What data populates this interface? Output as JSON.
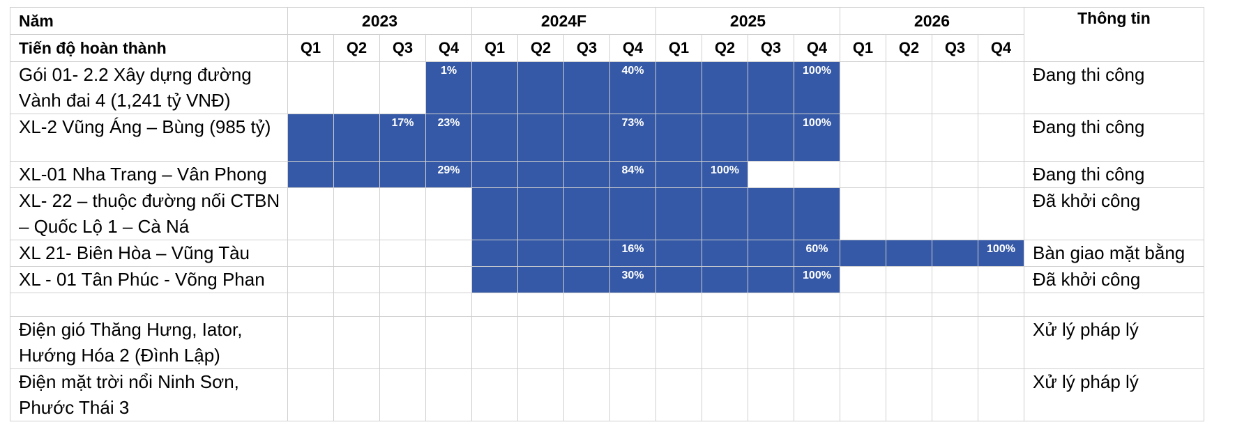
{
  "chart_data": {
    "type": "table",
    "header_year_label": "Năm",
    "header_progress_label": "Tiến độ hoàn thành",
    "info_header": "Thông tin",
    "years": [
      "2023",
      "2024F",
      "2025",
      "2026"
    ],
    "quarters": [
      "Q1",
      "Q2",
      "Q3",
      "Q4"
    ],
    "bar_color": "#3559a6",
    "rows": [
      {
        "name": "Gói 01- 2.2 Xây dựng đường Vành đai 4 (1,241 tỷ VNĐ)",
        "status": "Đang thi công",
        "filled": [
          0,
          0,
          0,
          1,
          1,
          1,
          1,
          1,
          1,
          1,
          1,
          1,
          0,
          0,
          0,
          0
        ],
        "labels": [
          "",
          "",
          "",
          "1%",
          "",
          "",
          "",
          "40%",
          "",
          "",
          "",
          "100%",
          "",
          "",
          "",
          ""
        ]
      },
      {
        "name": "XL-2 Vũng Áng – Bùng (985 tỷ)",
        "status": "Đang thi công",
        "filled": [
          1,
          1,
          1,
          1,
          1,
          1,
          1,
          1,
          1,
          1,
          1,
          1,
          0,
          0,
          0,
          0
        ],
        "labels": [
          "",
          "",
          "17%",
          "23%",
          "",
          "",
          "",
          "73%",
          "",
          "",
          "",
          "100%",
          "",
          "",
          "",
          ""
        ]
      },
      {
        "name": "XL-01 Nha Trang – Vân Phong",
        "status": "Đang thi công",
        "filled": [
          1,
          1,
          1,
          1,
          1,
          1,
          1,
          1,
          1,
          1,
          0,
          0,
          0,
          0,
          0,
          0
        ],
        "labels": [
          "",
          "",
          "",
          "29%",
          "",
          "",
          "",
          "84%",
          "",
          "100%",
          "",
          "",
          "",
          "",
          "",
          ""
        ]
      },
      {
        "name": "XL- 22 – thuộc đường nối CTBN – Quốc Lộ 1 – Cà Ná",
        "status": "Đã khởi công",
        "filled": [
          0,
          0,
          0,
          0,
          1,
          1,
          1,
          1,
          1,
          1,
          1,
          1,
          0,
          0,
          0,
          0
        ],
        "labels": [
          "",
          "",
          "",
          "",
          "",
          "",
          "",
          "",
          "",
          "",
          "",
          "",
          "",
          "",
          "",
          ""
        ]
      },
      {
        "name": "XL 21-  Biên Hòa – Vũng Tàu",
        "status": "Bàn giao mặt bằng",
        "filled": [
          0,
          0,
          0,
          0,
          1,
          1,
          1,
          1,
          1,
          1,
          1,
          1,
          1,
          1,
          1,
          1
        ],
        "labels": [
          "",
          "",
          "",
          "",
          "",
          "",
          "",
          "16%",
          "",
          "",
          "",
          "60%",
          "",
          "",
          "",
          "100%"
        ]
      },
      {
        "name": "XL - 01 Tân Phúc - Võng Phan",
        "status": "Đã khởi công",
        "filled": [
          0,
          0,
          0,
          0,
          1,
          1,
          1,
          1,
          1,
          1,
          1,
          1,
          0,
          0,
          0,
          0
        ],
        "labels": [
          "",
          "",
          "",
          "",
          "",
          "",
          "",
          "30%",
          "",
          "",
          "",
          "100%",
          "",
          "",
          "",
          ""
        ]
      },
      {
        "name": "",
        "status": "",
        "filled": [
          0,
          0,
          0,
          0,
          0,
          0,
          0,
          0,
          0,
          0,
          0,
          0,
          0,
          0,
          0,
          0
        ],
        "labels": [
          "",
          "",
          "",
          "",
          "",
          "",
          "",
          "",
          "",
          "",
          "",
          "",
          "",
          "",
          "",
          ""
        ]
      },
      {
        "name": "Điện gió Thăng Hưng, Iator, Hướng Hóa 2 (Đình Lập)",
        "status": "Xử lý pháp lý",
        "filled": [
          0,
          0,
          0,
          0,
          0,
          0,
          0,
          0,
          0,
          0,
          0,
          0,
          0,
          0,
          0,
          0
        ],
        "labels": [
          "",
          "",
          "",
          "",
          "",
          "",
          "",
          "",
          "",
          "",
          "",
          "",
          "",
          "",
          "",
          ""
        ]
      },
      {
        "name": "Điện mặt trời nổi Ninh Sơn, Phước Thái 3",
        "status": "Xử lý pháp lý",
        "filled": [
          0,
          0,
          0,
          0,
          0,
          0,
          0,
          0,
          0,
          0,
          0,
          0,
          0,
          0,
          0,
          0
        ],
        "labels": [
          "",
          "",
          "",
          "",
          "",
          "",
          "",
          "",
          "",
          "",
          "",
          "",
          "",
          "",
          "",
          ""
        ]
      }
    ]
  }
}
